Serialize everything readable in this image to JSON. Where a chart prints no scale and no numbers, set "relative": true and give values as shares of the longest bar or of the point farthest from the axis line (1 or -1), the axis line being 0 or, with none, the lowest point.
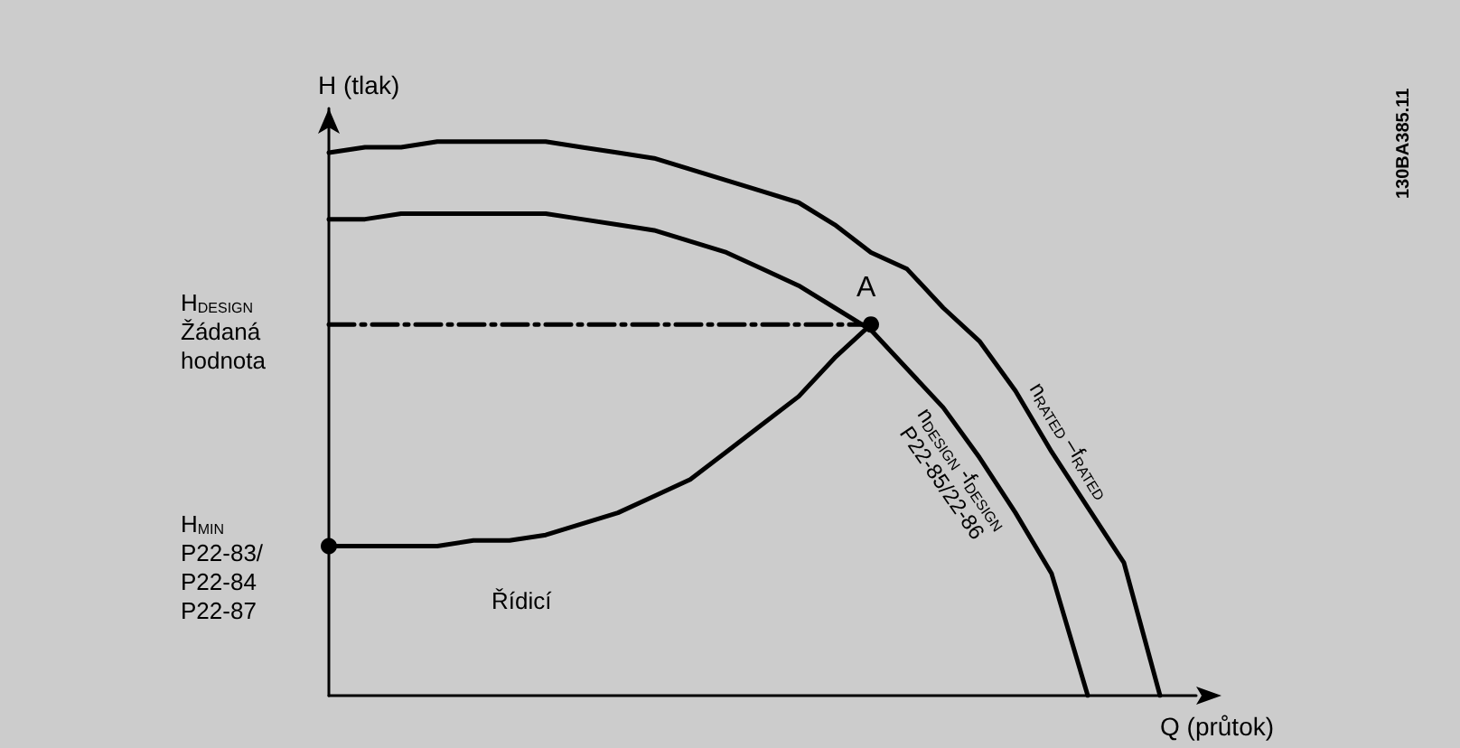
{
  "chart_data": {
    "type": "line",
    "relative": true,
    "xlabel": "Q (průtok)",
    "ylabel": "H (tlak)",
    "categories": [
      null,
      null,
      null,
      null,
      null,
      null,
      null,
      null,
      null,
      null,
      null,
      null,
      null,
      null,
      null,
      null,
      null,
      null,
      null,
      null,
      null,
      null,
      null,
      null,
      null
    ],
    "series": [
      {
        "name": "n$_{RATED}$ –f$_{RATED}$",
        "color": "#000000",
        "values": [
          0.98,
          0.99,
          0.99,
          1.0,
          1.0,
          1.0,
          1.0,
          0.99,
          0.98,
          0.97,
          0.95,
          0.93,
          0.91,
          0.89,
          0.85,
          0.8,
          0.77,
          0.7,
          0.64,
          0.55,
          0.44,
          0.34,
          0.24,
          0,
          null
        ]
      },
      {
        "name": "n$_{DESIGN}$ -f$_{DESIGN}$\nP22-85/22-86",
        "color": "#000000",
        "values": [
          0.86,
          0.86,
          0.87,
          0.87,
          0.87,
          0.87,
          0.87,
          0.86,
          0.85,
          0.84,
          0.82,
          0.8,
          0.77,
          0.74,
          0.7,
          0.66,
          0.59,
          0.52,
          0.43,
          0.33,
          0.22,
          0,
          null,
          null,
          null
        ]
      },
      {
        "name": "Řídicí",
        "color": "#000000",
        "values": [
          0.27,
          0.27,
          0.27,
          0.27,
          0.28,
          0.28,
          0.29,
          0.31,
          0.33,
          0.36,
          0.39,
          0.44,
          0.49,
          0.54,
          0.61,
          0.67,
          null,
          null,
          null,
          null,
          null,
          null,
          null,
          null,
          null
        ]
      },
      {
        "color": "#000000",
        "line_style": "dashed",
        "values": [
          0.67,
          0.67,
          0.67,
          0.67,
          0.67,
          0.67,
          0.67,
          0.67,
          0.67,
          0.67,
          0.67,
          0.67,
          0.67,
          0.67,
          0.67,
          0.67,
          null,
          null,
          null,
          null,
          null,
          null,
          null,
          null,
          null
        ]
      }
    ],
    "annotations": [
      "H$_{DESIGN}$\nŽádaná\nhodnota",
      "H$_{MIN}$\nP22-83/\nP22-84\nP22-87",
      "A",
      "130BA385.11"
    ]
  }
}
